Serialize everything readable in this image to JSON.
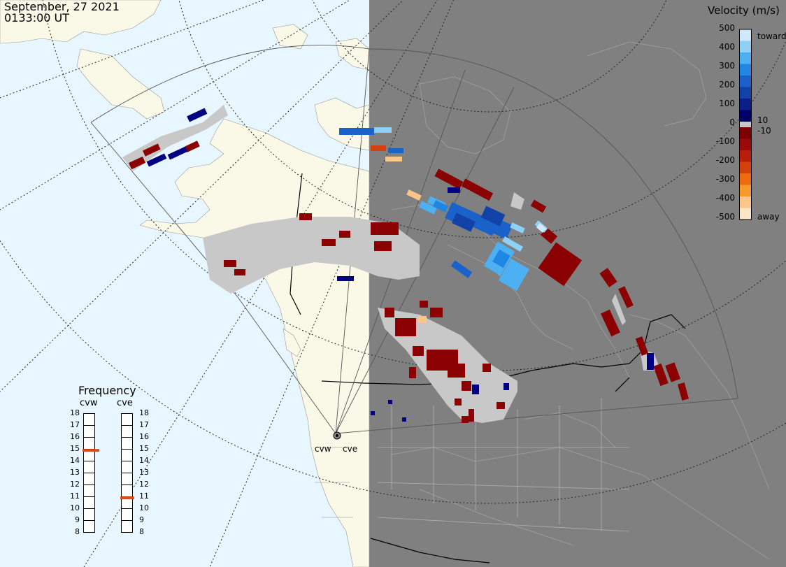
{
  "header": {
    "date": "September, 27 2021",
    "time": "0133:00 UT"
  },
  "velocity_scale": {
    "title": "Velocity (m/s)",
    "ticks": [
      "500",
      "400",
      "300",
      "200",
      "100",
      "0",
      "-100",
      "-200",
      "-300",
      "-400",
      "-500"
    ],
    "extra_ticks": [
      "10",
      "-10"
    ],
    "toward_label": "toward",
    "away_label": "away",
    "colors": [
      "#cfe8fb",
      "#8fd0f7",
      "#4cb0f2",
      "#1f86e3",
      "#1a62c9",
      "#1042a8",
      "#0a1f86",
      "#000066",
      "#7d0000",
      "#9a0a0a",
      "#b81e0a",
      "#d4400c",
      "#ed6a10",
      "#f79a2c",
      "#fcc68a",
      "#fde5c8"
    ]
  },
  "frequency": {
    "title": "Frequency",
    "radars": [
      {
        "label": "cvw",
        "value_mhz": 14.9
      },
      {
        "label": "cve",
        "value_mhz": 10.9
      }
    ],
    "ticks": [
      "18",
      "17",
      "16",
      "15",
      "14",
      "13",
      "12",
      "11",
      "10",
      "9",
      "8"
    ],
    "marker_color": "#e04a1a"
  },
  "radar_labels": [
    "cvw",
    "cve"
  ],
  "map_colors": {
    "day_ocean": "#e8f6ff",
    "day_land": "#faf8e6",
    "night": "#808080",
    "ground_scatter": "#c8c8c8"
  }
}
